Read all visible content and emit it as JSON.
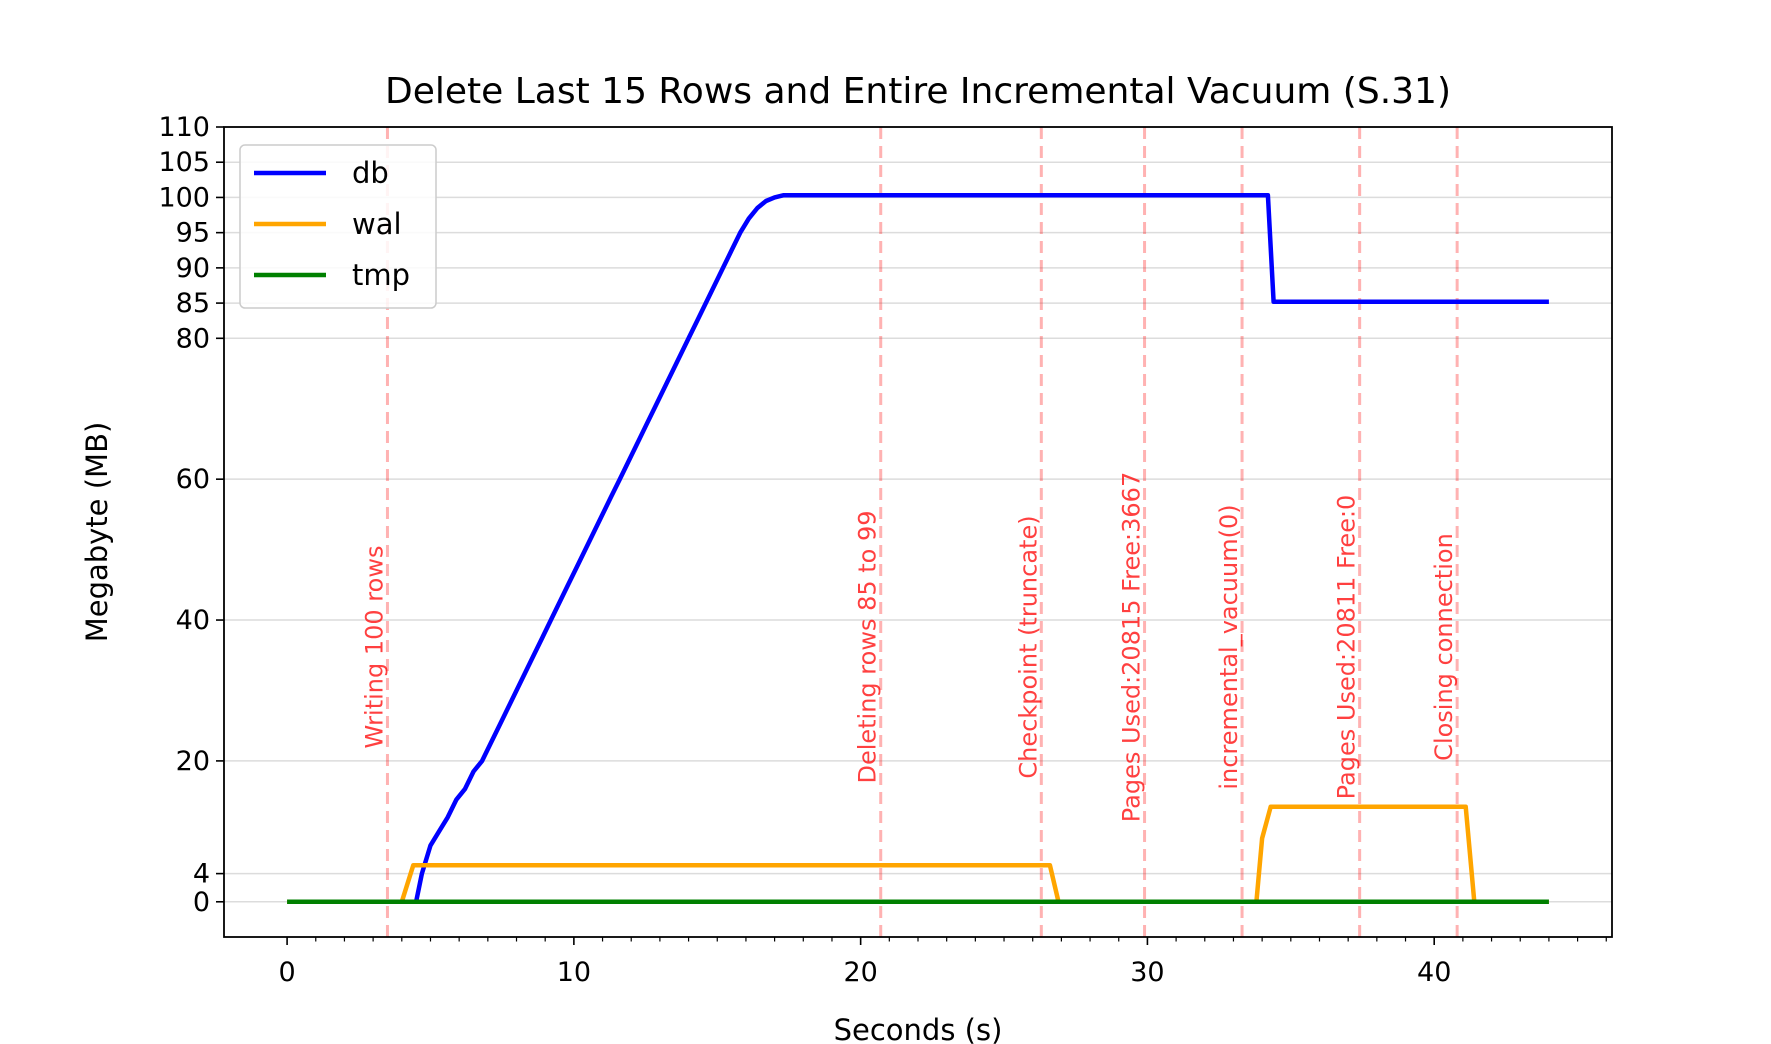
{
  "chart_data": {
    "type": "line",
    "title": "Delete Last 15 Rows and Entire Incremental Vacuum (S.31)",
    "xlabel": "Seconds (s)",
    "ylabel": "Megabyte (MB)",
    "xlim": [
      -2.2,
      46.2
    ],
    "ylim": [
      -5,
      110
    ],
    "x_ticks": [
      0,
      10,
      20,
      30,
      40
    ],
    "y_ticks": [
      0,
      4,
      20,
      40,
      60,
      80,
      85,
      90,
      95,
      100,
      105,
      110
    ],
    "grid": "horizontal",
    "legend_position": "top-left",
    "series": [
      {
        "name": "db",
        "color": "#0000ff",
        "x": [
          0,
          4.5,
          4.7,
          5.0,
          5.3,
          5.6,
          5.9,
          6.2,
          6.5,
          6.8,
          7.1,
          7.4,
          7.7,
          8.0,
          8.3,
          8.6,
          8.9,
          9.2,
          9.5,
          9.8,
          10.1,
          10.4,
          10.7,
          11.0,
          11.3,
          11.6,
          11.9,
          12.2,
          12.5,
          12.8,
          13.1,
          13.4,
          13.7,
          14.0,
          14.3,
          14.6,
          14.9,
          15.2,
          15.5,
          15.8,
          16.1,
          16.4,
          16.7,
          17.0,
          17.3,
          17.6,
          34.2,
          34.4,
          44.0
        ],
        "values": [
          0,
          0,
          4,
          8,
          10,
          12,
          14.5,
          16,
          18.5,
          20,
          22.5,
          25,
          27.5,
          30,
          32.5,
          35,
          37.5,
          40,
          42.5,
          45,
          47.5,
          50,
          52.5,
          55,
          57.5,
          60,
          62.5,
          65,
          67.5,
          70,
          72.5,
          75,
          77.5,
          80,
          82.5,
          85,
          87.5,
          90,
          92.5,
          95,
          97,
          98.5,
          99.5,
          100,
          100.3,
          100.3,
          100.3,
          85.2,
          85.2
        ]
      },
      {
        "name": "wal",
        "color": "#ffa500",
        "x": [
          0,
          4.0,
          4.4,
          26.6,
          26.9,
          33.8,
          34.0,
          34.3,
          41.1,
          41.4,
          44.0
        ],
        "values": [
          0,
          0,
          5.2,
          5.2,
          0,
          0,
          9,
          13.5,
          13.5,
          0,
          0
        ]
      },
      {
        "name": "tmp",
        "color": "#008000",
        "x": [
          0,
          44.0
        ],
        "values": [
          0,
          0
        ]
      }
    ],
    "events": [
      {
        "x": 3.5,
        "label": "Writing 100 rows"
      },
      {
        "x": 20.7,
        "label": "Deleting rows 85 to 99"
      },
      {
        "x": 26.3,
        "label": "Checkpoint (truncate)"
      },
      {
        "x": 29.9,
        "label": "Pages Used:20815 Free:3667"
      },
      {
        "x": 33.3,
        "label": "incremental_vacuum(0)"
      },
      {
        "x": 37.4,
        "label": "Pages Used:20811 Free:0"
      },
      {
        "x": 40.8,
        "label": "Closing connection"
      }
    ],
    "event_style": {
      "color": "#ff0000"
    }
  }
}
